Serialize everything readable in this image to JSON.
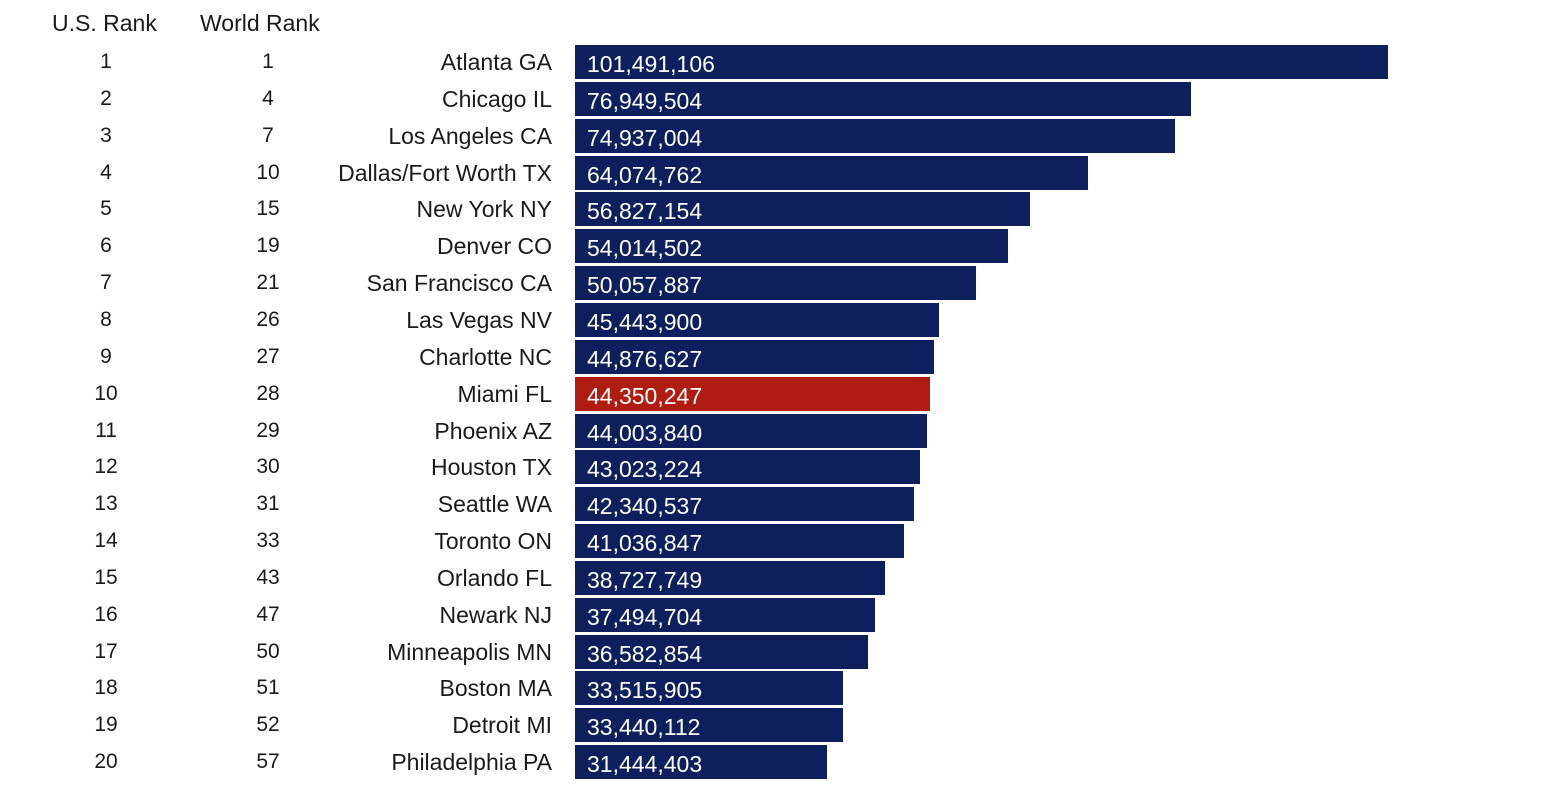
{
  "headers": {
    "us_rank": "U.S. Rank",
    "world_rank": "World Rank"
  },
  "colors": {
    "bar": "#0d1f5c",
    "highlight": "#b01c12",
    "value_text": "#ffffff"
  },
  "chart_data": {
    "type": "bar",
    "orientation": "horizontal",
    "highlighted_category": "Miami FL",
    "categories": [
      "Atlanta GA",
      "Chicago IL",
      "Los Angeles CA",
      "Dallas/Fort Worth TX",
      "New York NY",
      "Denver CO",
      "San Francisco CA",
      "Las Vegas NV",
      "Charlotte NC",
      "Miami FL",
      "Phoenix AZ",
      "Houston TX",
      "Seattle WA",
      "Toronto ON",
      "Orlando FL",
      "Newark NJ",
      "Minneapolis MN",
      "Boston MA",
      "Detroit MI",
      "Philadelphia PA"
    ],
    "values": [
      101491106,
      76949504,
      74937004,
      64074762,
      56827154,
      54014502,
      50057887,
      45443900,
      44876627,
      44350247,
      44003840,
      43023224,
      42340537,
      41036847,
      38727749,
      37494704,
      36582854,
      33515905,
      33440112,
      31444403
    ],
    "value_labels": [
      "101,491,106",
      "76,949,504",
      "74,937,004",
      "64,074,762",
      "56,827,154",
      "54,014,502",
      "50,057,887",
      "45,443,900",
      "44,876,627",
      "44,350,247",
      "44,003,840",
      "43,023,224",
      "42,340,537",
      "41,036,847",
      "38,727,749",
      "37,494,704",
      "36,582,854",
      "33,515,905",
      "33,440,112",
      "31,444,403"
    ],
    "us_rank": [
      "1",
      "2",
      "3",
      "4",
      "5",
      "6",
      "7",
      "8",
      "9",
      "10",
      "11",
      "12",
      "13",
      "14",
      "15",
      "16",
      "17",
      "18",
      "19",
      "20"
    ],
    "world_rank": [
      "1",
      "4",
      "7",
      "10",
      "15",
      "19",
      "21",
      "26",
      "27",
      "28",
      "29",
      "30",
      "31",
      "33",
      "43",
      "47",
      "50",
      "51",
      "52",
      "57"
    ],
    "xlim": [
      0,
      101491106
    ],
    "grid": false,
    "legend": "none"
  }
}
